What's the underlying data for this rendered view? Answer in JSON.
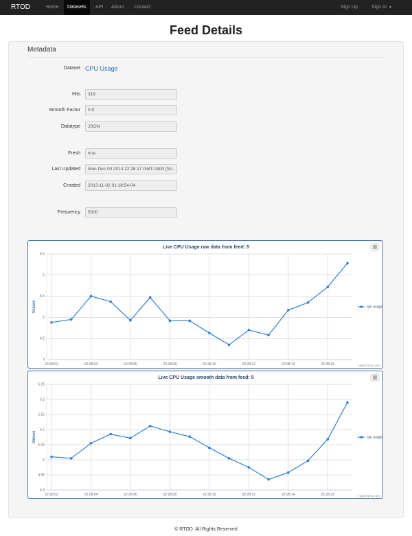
{
  "nav": {
    "brand": "RTOD",
    "links": [
      "Home",
      "Datasets",
      "API",
      "About",
      "Contact"
    ],
    "right": [
      "Sign Up",
      "Sign In"
    ]
  },
  "header": {
    "title": "Feed Details"
  },
  "panel": {
    "heading": "Metadata",
    "dataset": {
      "label": "Dataset",
      "value": "CPU Usage"
    },
    "fields": [
      {
        "label": "Hits",
        "value": "319"
      },
      {
        "label": "Smooth Factor",
        "value": "0.9"
      },
      {
        "label": "Datatype",
        "value": "JSON"
      },
      {
        "label": "Fresh",
        "value": "true"
      },
      {
        "label": "Last Updated",
        "value": "Mon Dec 09 2013 22:28:17 GMT-0400 (SA"
      },
      {
        "label": "Created",
        "value": "2013-11-02 01:18:54-04"
      },
      {
        "label": "Frequency",
        "value": "5000"
      }
    ]
  },
  "chart_data": [
    {
      "type": "line",
      "title": "Live CPU Usage raw data from feed: 5",
      "y_label": "Values",
      "credit": "Highcharts.com",
      "categories": [
        "22:28:02",
        null,
        "22:28:04",
        null,
        "22:28:06",
        null,
        "22:28:08",
        null,
        "22:28:10",
        null,
        "22:28:12",
        null,
        "22:28:14",
        null,
        "22:28:16",
        null
      ],
      "series": [
        {
          "name": "cpu usage",
          "color": "#2f7ed8",
          "values": [
            4.88,
            4.95,
            5.5,
            5.37,
            4.93,
            5.47,
            4.92,
            4.92,
            4.63,
            4.35,
            4.7,
            4.58,
            5.17,
            5.35,
            5.72,
            6.28
          ]
        }
      ],
      "ylim": [
        4,
        6.5
      ],
      "yticks": [
        4,
        4.5,
        5,
        5.5,
        6,
        6.5
      ],
      "grid": true,
      "legend": "right"
    },
    {
      "type": "line",
      "title": "Live CPU Usage smooth data from feed: 5",
      "y_label": "Values",
      "credit": "Highcharts.com",
      "categories": [
        "22:28:02",
        null,
        "22:28:04",
        null,
        "22:28:06",
        null,
        "22:28:08",
        null,
        "22:28:10",
        null,
        "22:28:12",
        null,
        "22:28:14",
        null,
        "22:28:16",
        null
      ],
      "series": [
        {
          "name": "cpu usage",
          "color": "#2f7ed8",
          "values": [
            5.01,
            5.005,
            5.055,
            5.085,
            5.072,
            5.112,
            5.093,
            5.077,
            5.04,
            5.005,
            4.975,
            4.935,
            4.958,
            4.997,
            5.068,
            5.19
          ]
        }
      ],
      "ylim": [
        4.9,
        5.25
      ],
      "yticks": [
        4.9,
        4.95,
        5,
        5.05,
        5.1,
        5.15,
        5.2,
        5.25
      ],
      "grid": true,
      "legend": "right"
    }
  ],
  "footer": "© RTOD. All Rights Reserved"
}
